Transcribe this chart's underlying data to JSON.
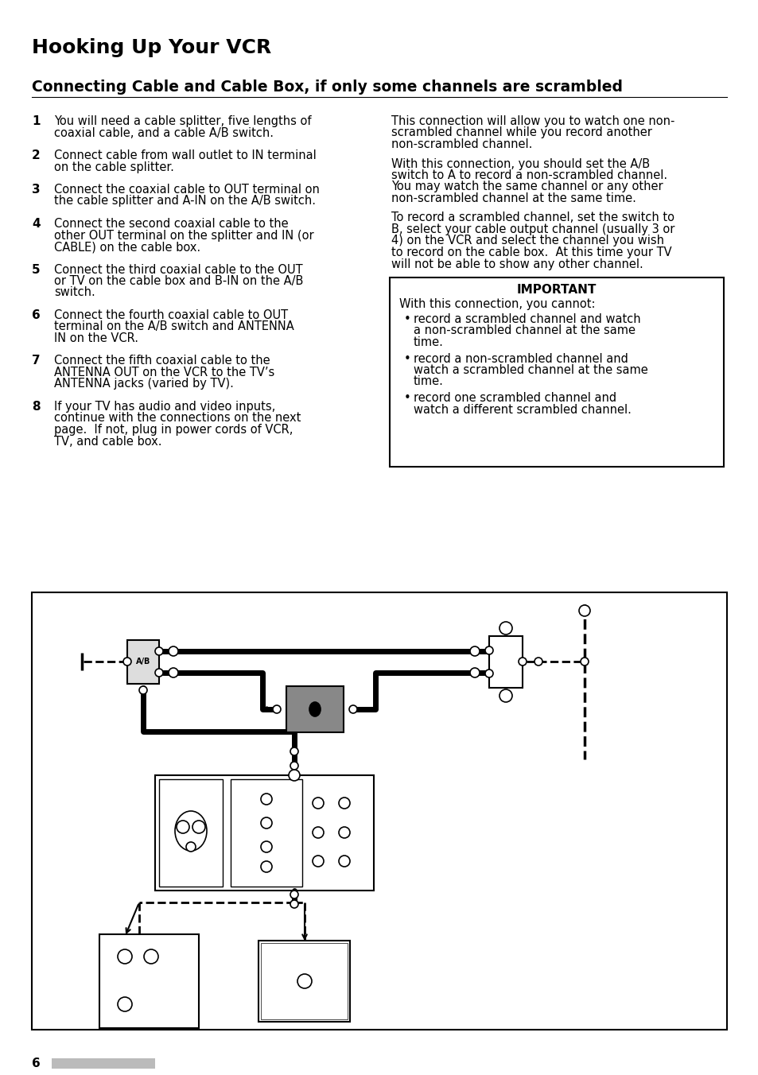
{
  "title": "Hooking Up Your VCR",
  "subtitle": "Connecting Cable and Cable Box, if only some channels are scrambled",
  "bg_color": "#ffffff",
  "left_items": [
    {
      "num": "1",
      "text": "You will need a cable splitter, five lengths of\ncoaxial cable, and a cable A/B switch."
    },
    {
      "num": "2",
      "text": "Connect cable from wall outlet to IN terminal\non the cable splitter."
    },
    {
      "num": "3",
      "text": "Connect the coaxial cable to OUT terminal on\nthe cable splitter and A-IN on the A/B switch."
    },
    {
      "num": "4",
      "text": "Connect the second coaxial cable to the\nother OUT terminal on the splitter and IN (or\nCABLE) on the cable box."
    },
    {
      "num": "5",
      "text": "Connect the third coaxial cable to the OUT\nor TV on the cable box and B-IN on the A/B\nswitch."
    },
    {
      "num": "6",
      "text": "Connect the fourth coaxial cable to OUT\nterminal on the A/B switch and ANTENNA\nIN on the VCR."
    },
    {
      "num": "7",
      "text": "Connect the fifth coaxial cable to the\nANTENNA OUT on the VCR to the TV’s\nANTENNA jacks (varied by TV)."
    },
    {
      "num": "8",
      "text": "If your TV has audio and video inputs,\ncontinue with the connections on the next\npage.  If not, plug in power cords of VCR,\nTV, and cable box."
    }
  ],
  "right_para1": "This connection will allow you to watch one non-\nscrambled channel while you record another\nnon-scrambled channel.",
  "right_para2": "With this connection, you should set the A/B\nswitch to A to record a non-scrambled channel.\nYou may watch the same channel or any other\nnon-scrambled channel at the same time.",
  "right_para3": "To record a scrambled channel, set the switch to\nB, select your cable output channel (usually 3 or\n4) on the VCR and select the channel you wish\nto record on the cable box.  At this time your TV\nwill not be able to show any other channel.",
  "important_title": "IMPORTANT",
  "important_intro": "With this connection, you cannot:",
  "important_bullets": [
    "record a scrambled channel and watch\na non-scrambled channel at the same\ntime.",
    "record a non-scrambled channel and\nwatch a scrambled channel at the same\ntime.",
    "record one scrambled channel and\nwatch a different scrambled channel."
  ],
  "page_number": "6",
  "font_color": "#000000"
}
